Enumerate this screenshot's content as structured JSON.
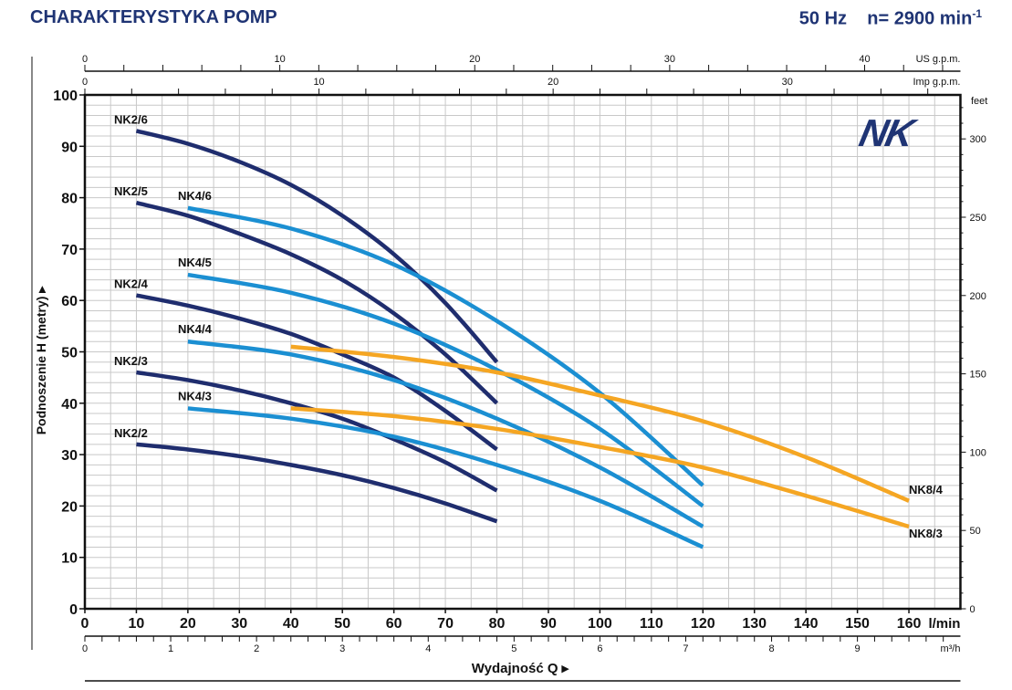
{
  "header": {
    "title": "CHARAKTERYSTYKA POMP",
    "freq": "50 Hz",
    "speed": "n= 2900 min",
    "speed_exp": "-1"
  },
  "logo": "NK",
  "colors": {
    "nk2": "#1f2d6e",
    "nk4": "#1b8fd2",
    "nk8": "#f5a623",
    "grid": "#c8c8c8",
    "title": "#1f3474"
  },
  "chart_data": {
    "type": "line",
    "xlabel": "Wydajność Q",
    "ylabel": "Podnoszenie H (metry)",
    "xunit": "l/min",
    "xlim": [
      0,
      170
    ],
    "ylim": [
      0,
      100
    ],
    "grid": true,
    "x_ticks": [
      0,
      10,
      20,
      30,
      40,
      50,
      60,
      70,
      80,
      90,
      100,
      110,
      120,
      130,
      140,
      150,
      160
    ],
    "y_ticks": [
      0,
      10,
      20,
      30,
      40,
      50,
      60,
      70,
      80,
      90,
      100
    ],
    "right_axis": {
      "label": "feet",
      "ticks": [
        0,
        50,
        100,
        150,
        200,
        250,
        300
      ]
    },
    "top_axes": [
      {
        "label": "US g.p.m.",
        "ticks": [
          0,
          10,
          20,
          30,
          40
        ],
        "lpm_per_unit": 3.785
      },
      {
        "label": "Imp g.p.m.",
        "ticks": [
          0,
          10,
          20,
          30
        ],
        "lpm_per_unit": 4.546
      }
    ],
    "bottom_axis2": {
      "label": "m³/h",
      "ticks": [
        0,
        1,
        2,
        3,
        4,
        5,
        6,
        7,
        8,
        9
      ],
      "lpm_per_unit": 16.667
    },
    "series": [
      {
        "name": "NK2/6",
        "group": "nk2",
        "x": [
          10,
          20,
          30,
          40,
          50,
          60,
          70,
          80
        ],
        "y": [
          93,
          90.5,
          87,
          82.5,
          76.5,
          69,
          59.5,
          48
        ]
      },
      {
        "name": "NK2/5",
        "group": "nk2",
        "x": [
          10,
          20,
          30,
          40,
          50,
          60,
          70,
          80
        ],
        "y": [
          79,
          76.5,
          73,
          69,
          64,
          57.5,
          49.5,
          40
        ]
      },
      {
        "name": "NK2/4",
        "group": "nk2",
        "x": [
          10,
          20,
          30,
          40,
          50,
          60,
          70,
          80
        ],
        "y": [
          61,
          59,
          56.5,
          53.5,
          49.5,
          45,
          38.5,
          31
        ]
      },
      {
        "name": "NK2/3",
        "group": "nk2",
        "x": [
          10,
          20,
          30,
          40,
          50,
          60,
          70,
          80
        ],
        "y": [
          46,
          44.5,
          42.5,
          40,
          37,
          33,
          28.5,
          23
        ]
      },
      {
        "name": "NK2/2",
        "group": "nk2",
        "x": [
          10,
          20,
          30,
          40,
          50,
          60,
          70,
          80
        ],
        "y": [
          32,
          31,
          29.7,
          28,
          26,
          23.5,
          20.5,
          17
        ]
      },
      {
        "name": "NK4/6",
        "group": "nk4",
        "x": [
          20,
          40,
          60,
          80,
          100,
          120
        ],
        "y": [
          78,
          74,
          67,
          56,
          42,
          24
        ]
      },
      {
        "name": "NK4/5",
        "group": "nk4",
        "x": [
          20,
          40,
          60,
          80,
          100,
          120
        ],
        "y": [
          65,
          61.5,
          55.5,
          46.5,
          35,
          20
        ]
      },
      {
        "name": "NK4/4",
        "group": "nk4",
        "x": [
          20,
          40,
          60,
          80,
          100,
          120
        ],
        "y": [
          52,
          49.5,
          44.5,
          37,
          27.5,
          16
        ]
      },
      {
        "name": "NK4/3",
        "group": "nk4",
        "x": [
          20,
          40,
          60,
          80,
          100,
          120
        ],
        "y": [
          39,
          37,
          33.5,
          28,
          21,
          12
        ]
      },
      {
        "name": "NK8/4",
        "group": "nk8",
        "x": [
          40,
          60,
          80,
          100,
          120,
          140,
          160
        ],
        "y": [
          51,
          49,
          46,
          41.5,
          36.5,
          29.5,
          21
        ]
      },
      {
        "name": "NK8/3",
        "group": "nk8",
        "x": [
          40,
          60,
          80,
          100,
          120,
          140,
          160
        ],
        "y": [
          39,
          37.5,
          35,
          31.5,
          27.5,
          22,
          16
        ]
      }
    ]
  }
}
